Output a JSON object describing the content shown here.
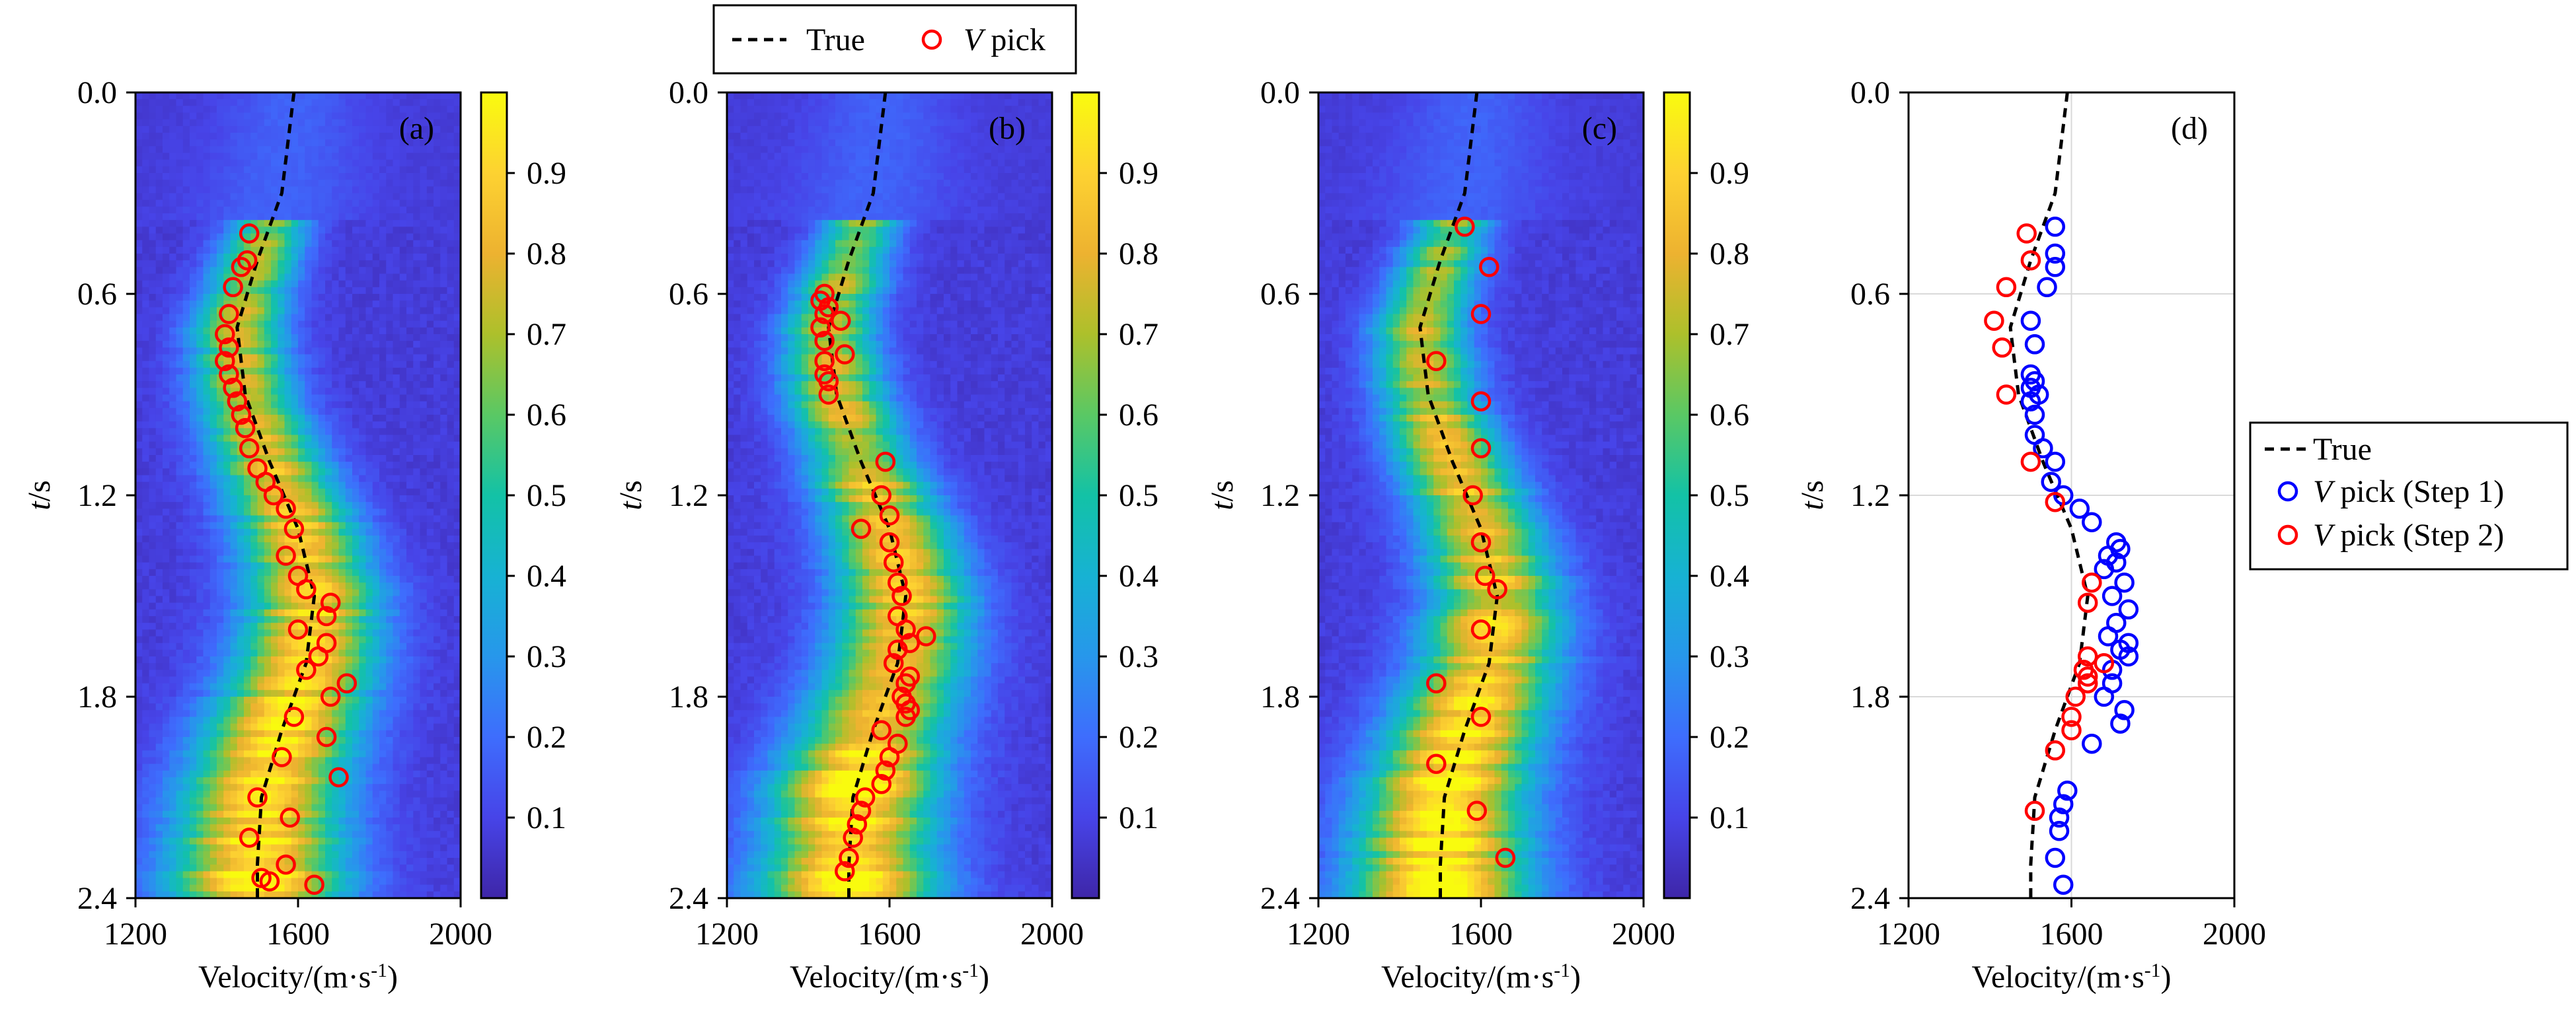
{
  "figure": {
    "top_legend": {
      "true_label": "True",
      "pick_label_italic": "V",
      "pick_label_rest": " pick"
    },
    "side_legend": {
      "true_label": "True",
      "pick1_label_italic": "V",
      "pick1_label_rest": " pick (Step 1)",
      "pick2_label_italic": "V",
      "pick2_label_rest": " pick (Step 2)"
    },
    "colorbar_ticks": [
      "0.1",
      "0.2",
      "0.3",
      "0.4",
      "0.5",
      "0.6",
      "0.7",
      "0.8",
      "0.9"
    ],
    "colors": {
      "pick_red": "#ff0000",
      "pick_blue": "#0000ff",
      "true_line": "#000000",
      "grid": "#d9d9d9"
    },
    "colormap": [
      "#3e26a8",
      "#4744e8",
      "#3e6dfd",
      "#2797eb",
      "#17b2d3",
      "#13c2a6",
      "#5ac864",
      "#adc02b",
      "#edb230",
      "#fdd231",
      "#f9fb0e"
    ]
  },
  "chart_data": [
    {
      "type": "heatmap",
      "panel_label": "(a)",
      "xlabel_main": "Velocity/(m·s",
      "xlabel_sup": "-1",
      "xlabel_close": ")",
      "ylabel_italic": "t",
      "ylabel_rest": "/s",
      "xlim": [
        1200,
        2000
      ],
      "ylim": [
        0.0,
        2.4
      ],
      "y_inverted": true,
      "xticks": [
        "1200",
        "1600",
        "2000"
      ],
      "yticks": [
        "0.0",
        "0.6",
        "1.2",
        "1.8",
        "2.4"
      ],
      "colorbar": {
        "range": [
          0,
          1
        ],
        "ticks": [
          0.1,
          0.2,
          0.3,
          0.4,
          0.5,
          0.6,
          0.7,
          0.8,
          0.9
        ]
      },
      "true_curve": {
        "t": [
          0.0,
          0.3,
          0.5,
          0.7,
          0.9,
          1.1,
          1.3,
          1.5,
          1.7,
          1.9,
          2.1,
          2.3,
          2.4
        ],
        "v": [
          1590,
          1560,
          1500,
          1450,
          1470,
          1530,
          1600,
          1640,
          1620,
          1560,
          1510,
          1500,
          1500
        ]
      },
      "v_pick": {
        "t": [
          0.42,
          0.5,
          0.52,
          0.58,
          0.66,
          0.72,
          0.76,
          0.8,
          0.84,
          0.88,
          0.92,
          0.96,
          1.0,
          1.06,
          1.12,
          1.16,
          1.2,
          1.24,
          1.3,
          1.38,
          1.44,
          1.48,
          1.52,
          1.56,
          1.6,
          1.64,
          1.68,
          1.72,
          1.76,
          1.8,
          1.86,
          1.92,
          1.98,
          2.04,
          2.1,
          2.16,
          2.22,
          2.3,
          2.34,
          2.35,
          2.36
        ],
        "v": [
          1480,
          1475,
          1460,
          1440,
          1430,
          1420,
          1430,
          1420,
          1430,
          1440,
          1450,
          1460,
          1470,
          1480,
          1500,
          1520,
          1540,
          1570,
          1590,
          1570,
          1600,
          1620,
          1680,
          1670,
          1600,
          1670,
          1650,
          1620,
          1720,
          1680,
          1590,
          1670,
          1560,
          1700,
          1500,
          1580,
          1480,
          1570,
          1510,
          1530,
          1640
        ]
      }
    },
    {
      "type": "heatmap",
      "panel_label": "(b)",
      "xlabel_main": "Velocity/(m·s",
      "xlabel_sup": "-1",
      "xlabel_close": ")",
      "ylabel_italic": "t",
      "ylabel_rest": "/s",
      "xlim": [
        1200,
        2000
      ],
      "ylim": [
        0.0,
        2.4
      ],
      "y_inverted": true,
      "xticks": [
        "1200",
        "1600",
        "2000"
      ],
      "yticks": [
        "0.0",
        "0.6",
        "1.2",
        "1.8",
        "2.4"
      ],
      "colorbar": {
        "range": [
          0,
          1
        ],
        "ticks": [
          0.1,
          0.2,
          0.3,
          0.4,
          0.5,
          0.6,
          0.7,
          0.8,
          0.9
        ]
      },
      "true_curve": {
        "t": [
          0.0,
          0.3,
          0.5,
          0.7,
          0.9,
          1.1,
          1.3,
          1.5,
          1.7,
          1.9,
          2.1,
          2.3,
          2.4
        ],
        "v": [
          1590,
          1560,
          1500,
          1450,
          1470,
          1530,
          1600,
          1640,
          1620,
          1560,
          1510,
          1500,
          1500
        ]
      },
      "v_pick": {
        "t": [
          0.6,
          0.62,
          0.64,
          0.66,
          0.68,
          0.7,
          0.74,
          0.78,
          0.8,
          0.84,
          0.86,
          0.9,
          1.1,
          1.2,
          1.26,
          1.3,
          1.34,
          1.4,
          1.46,
          1.5,
          1.56,
          1.6,
          1.62,
          1.64,
          1.66,
          1.7,
          1.74,
          1.76,
          1.8,
          1.82,
          1.84,
          1.86,
          1.9,
          1.94,
          1.98,
          2.02,
          2.06,
          2.1,
          2.14,
          2.18,
          2.22,
          2.28,
          2.32
        ],
        "v": [
          1440,
          1430,
          1450,
          1440,
          1480,
          1430,
          1440,
          1490,
          1440,
          1440,
          1450,
          1450,
          1590,
          1580,
          1600,
          1530,
          1600,
          1610,
          1620,
          1630,
          1620,
          1640,
          1690,
          1650,
          1620,
          1610,
          1650,
          1640,
          1630,
          1640,
          1650,
          1640,
          1580,
          1620,
          1600,
          1590,
          1580,
          1540,
          1530,
          1520,
          1510,
          1500,
          1490
        ]
      }
    },
    {
      "type": "heatmap",
      "panel_label": "(c)",
      "xlabel_main": "Velocity/(m·s",
      "xlabel_sup": "-1",
      "xlabel_close": ")",
      "ylabel_italic": "t",
      "ylabel_rest": "/s",
      "xlim": [
        1200,
        2000
      ],
      "ylim": [
        0.0,
        2.4
      ],
      "y_inverted": true,
      "xticks": [
        "1200",
        "1600",
        "2000"
      ],
      "yticks": [
        "0.0",
        "0.6",
        "1.2",
        "1.8",
        "2.4"
      ],
      "colorbar": {
        "range": [
          0,
          1
        ],
        "ticks": [
          0.1,
          0.2,
          0.3,
          0.4,
          0.5,
          0.6,
          0.7,
          0.8,
          0.9
        ]
      },
      "true_curve": {
        "t": [
          0.0,
          0.3,
          0.5,
          0.7,
          0.9,
          1.1,
          1.3,
          1.5,
          1.7,
          1.9,
          2.1,
          2.3,
          2.4
        ],
        "v": [
          1590,
          1560,
          1500,
          1450,
          1470,
          1530,
          1600,
          1640,
          1620,
          1560,
          1510,
          1500,
          1500
        ]
      },
      "v_pick": {
        "t": [
          0.4,
          0.52,
          0.66,
          0.8,
          0.92,
          1.06,
          1.2,
          1.34,
          1.44,
          1.48,
          1.6,
          1.76,
          1.86,
          2.0,
          2.14,
          2.28
        ],
        "v": [
          1560,
          1620,
          1600,
          1490,
          1600,
          1600,
          1580,
          1600,
          1610,
          1640,
          1600,
          1490,
          1600,
          1490,
          1590,
          1660
        ]
      }
    },
    {
      "type": "scatter",
      "panel_label": "(d)",
      "xlabel_main": "Velocity/(m·s",
      "xlabel_sup": "-1",
      "xlabel_close": ")",
      "ylabel_italic": "t",
      "ylabel_rest": "/s",
      "xlim": [
        1200,
        2000
      ],
      "ylim": [
        0.0,
        2.4
      ],
      "y_inverted": true,
      "xticks": [
        "1200",
        "1600",
        "2000"
      ],
      "yticks": [
        "0.0",
        "0.6",
        "1.2",
        "1.8",
        "2.4"
      ],
      "grid": true,
      "true_curve": {
        "t": [
          0.0,
          0.3,
          0.5,
          0.7,
          0.9,
          1.1,
          1.3,
          1.5,
          1.7,
          1.9,
          2.1,
          2.3,
          2.4
        ],
        "v": [
          1590,
          1560,
          1500,
          1450,
          1470,
          1530,
          1600,
          1640,
          1620,
          1560,
          1510,
          1500,
          1500
        ]
      },
      "v_pick_step1": {
        "t": [
          0.4,
          0.48,
          0.52,
          0.58,
          0.68,
          0.75,
          0.84,
          0.86,
          0.88,
          0.9,
          0.92,
          0.96,
          1.02,
          1.06,
          1.1,
          1.16,
          1.2,
          1.24,
          1.28,
          1.34,
          1.36,
          1.38,
          1.4,
          1.42,
          1.46,
          1.5,
          1.54,
          1.58,
          1.62,
          1.64,
          1.66,
          1.68,
          1.72,
          1.76,
          1.8,
          1.84,
          1.88,
          1.94,
          2.08,
          2.12,
          2.16,
          2.2,
          2.28,
          2.36
        ],
        "v": [
          1560,
          1560,
          1560,
          1540,
          1500,
          1510,
          1500,
          1510,
          1500,
          1520,
          1500,
          1510,
          1510,
          1530,
          1560,
          1550,
          1580,
          1620,
          1650,
          1710,
          1720,
          1690,
          1710,
          1680,
          1730,
          1700,
          1740,
          1710,
          1690,
          1740,
          1720,
          1740,
          1700,
          1700,
          1680,
          1730,
          1720,
          1650,
          1590,
          1580,
          1570,
          1570,
          1560,
          1580
        ]
      },
      "v_pick_step2": {
        "t": [
          0.42,
          0.5,
          0.58,
          0.68,
          0.76,
          0.9,
          1.1,
          1.22,
          1.46,
          1.52,
          1.68,
          1.7,
          1.72,
          1.74,
          1.76,
          1.8,
          1.86,
          1.9,
          1.96,
          2.14
        ],
        "v": [
          1490,
          1500,
          1440,
          1410,
          1430,
          1440,
          1500,
          1560,
          1650,
          1640,
          1640,
          1680,
          1630,
          1640,
          1640,
          1610,
          1600,
          1600,
          1560,
          1510
        ]
      }
    }
  ]
}
